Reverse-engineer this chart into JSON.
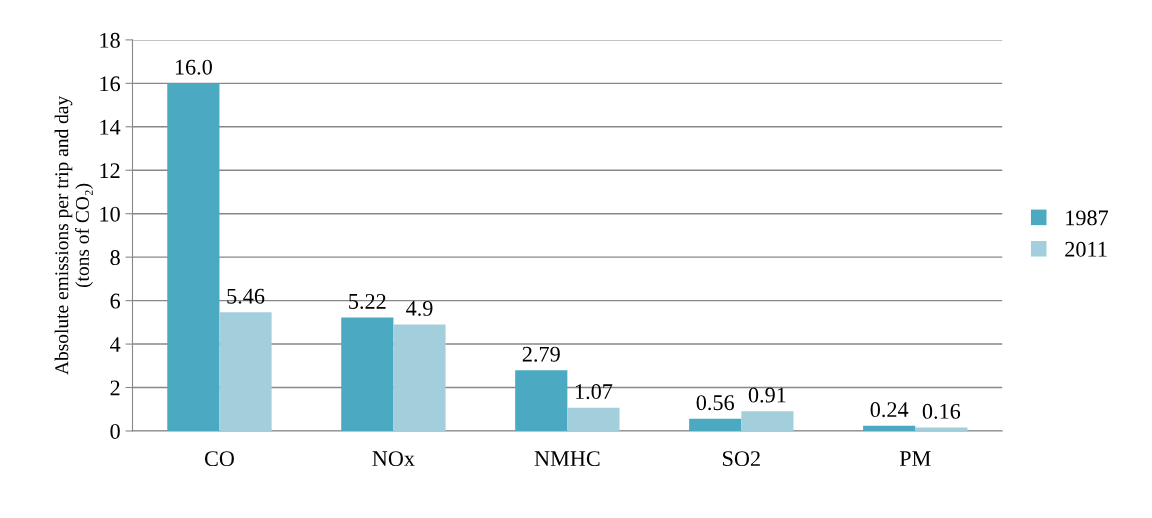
{
  "chart_data": {
    "type": "bar",
    "ylabel": "Absolute emissions per trip and day\n(tons of CO₂)",
    "categories": [
      "CO",
      "NOx",
      "NMHC",
      "SO2",
      "PM"
    ],
    "series": [
      {
        "name": "1987",
        "color": "#4ba9c1",
        "values": [
          16.0,
          5.22,
          2.79,
          0.56,
          0.24
        ],
        "value_labels": [
          "16.0",
          "5.22",
          "2.79",
          "0.56",
          "0.24"
        ]
      },
      {
        "name": "2011",
        "color": "#a3cfdd",
        "values": [
          5.46,
          4.9,
          1.07,
          0.91,
          0.16
        ],
        "value_labels": [
          "5.46",
          "4.9",
          "1.07",
          "0.91",
          "0.16"
        ]
      }
    ],
    "ylim": [
      0,
      18
    ],
    "yticks": [
      0,
      2,
      4,
      6,
      8,
      10,
      12,
      14,
      16,
      18
    ],
    "grid": "y",
    "legend": "right"
  }
}
